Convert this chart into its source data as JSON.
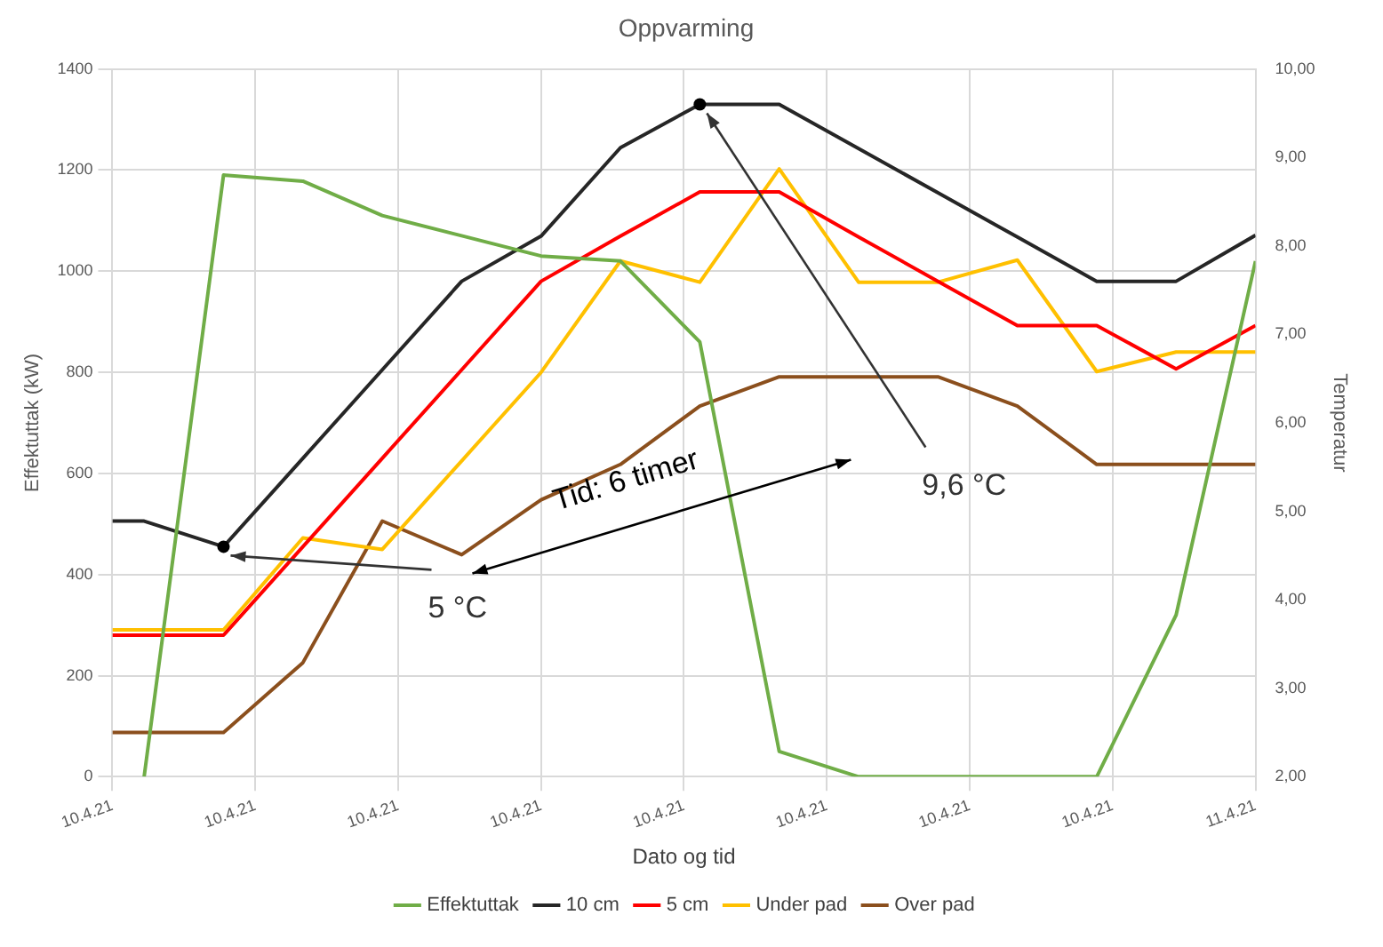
{
  "chart_data": {
    "type": "line",
    "title": "Oppvarming",
    "xlabel": "Dato og tid",
    "ylabel": "Effektuttak (kW)",
    "y2label": "Temperatur",
    "x": [
      "--04-10T12:00",
      "--04-10T12:24",
      "--04-10T13:24",
      "--04-10T14:24",
      "--04-10T15:24",
      "--04-10T16:24",
      "--04-10T17:24",
      "--04-10T18:24",
      "--04-10T19:24",
      "--04-10T20:24",
      "--04-10T21:24",
      "--04-10T22:24",
      "--04-10T23:24",
      "--04-11T00:24",
      "--04-11T01:24",
      "--04-11T02:24"
    ],
    "series": [
      {
        "name": "Effektuttak",
        "color": "#70ad47",
        "values": [
          null,
          0,
          1190,
          1178,
          1110,
          1070,
          1030,
          1020,
          860,
          50,
          0,
          0,
          0,
          0,
          320,
          1020
        ]
      },
      {
        "name": "10 cm",
        "color": "#262626",
        "axis": "y2",
        "values": [
          4.89,
          4.89,
          4.6,
          5.6,
          6.6,
          7.6,
          8.11,
          9.11,
          9.6,
          9.6,
          9.1,
          8.6,
          8.1,
          7.6,
          7.6,
          8.12
        ]
      },
      {
        "name": "5 cm",
        "color": "#ff0000",
        "axis": "y2",
        "values": [
          3.6,
          3.6,
          3.6,
          4.6,
          5.6,
          6.6,
          7.6,
          8.11,
          8.61,
          8.61,
          8.1,
          7.6,
          7.1,
          7.1,
          6.61,
          7.1
        ]
      },
      {
        "name": "Under pad",
        "color": "#ffc000",
        "axis": "y2",
        "values": [
          3.66,
          3.66,
          3.66,
          4.7,
          4.57,
          5.57,
          6.57,
          7.83,
          7.59,
          8.87,
          7.59,
          7.59,
          7.84,
          6.58,
          6.8,
          6.8
        ]
      },
      {
        "name": "Over pad",
        "color": "#8b4f1d",
        "axis": "y2",
        "values": [
          2.5,
          2.5,
          2.5,
          3.29,
          4.89,
          4.51,
          5.13,
          5.53,
          6.19,
          6.52,
          6.52,
          6.52,
          6.19,
          5.53,
          5.53,
          5.53
        ]
      }
    ],
    "xlim": [
      "--04-10T12:00",
      "--04-11T02:24"
    ],
    "xticks": [
      {
        "value": "--04-10T12:00",
        "label": "10.4.21"
      },
      {
        "value": "--04-10T13:48",
        "label": "10.4.21"
      },
      {
        "value": "--04-10T15:36",
        "label": "10.4.21"
      },
      {
        "value": "--04-10T17:24",
        "label": "10.4.21"
      },
      {
        "value": "--04-10T19:12",
        "label": "10.4.21"
      },
      {
        "value": "--04-10T21:00",
        "label": "10.4.21"
      },
      {
        "value": "--04-10T22:48",
        "label": "10.4.21"
      },
      {
        "value": "--04-11T00:36",
        "label": "10.4.21"
      },
      {
        "value": "--04-11T02:24",
        "label": "11.4.21"
      }
    ],
    "ylim": [
      0,
      1400
    ],
    "yticks": [
      0,
      200,
      400,
      600,
      800,
      1000,
      1200,
      1400
    ],
    "y2lim": [
      2,
      10
    ],
    "y2ticks": [
      {
        "value": 2,
        "label": "2,00"
      },
      {
        "value": 3,
        "label": "3,00"
      },
      {
        "value": 4,
        "label": "4,00"
      },
      {
        "value": 5,
        "label": "5,00"
      },
      {
        "value": 6,
        "label": "6,00"
      },
      {
        "value": 7,
        "label": "7,00"
      },
      {
        "value": 8,
        "label": "8,00"
      },
      {
        "value": 9,
        "label": "9,00"
      },
      {
        "value": 10,
        "label": "10,00"
      }
    ],
    "annotations": [
      {
        "text": "5 °C",
        "x": "--04-10T13:24",
        "y": 455
      },
      {
        "text": "9,6 °C",
        "x": "--04-10T19:24",
        "y": 1330
      },
      "Tid: 6 timer"
    ],
    "grid": true,
    "legend": "bottom",
    "marker": "none",
    "line_style": "solid"
  }
}
